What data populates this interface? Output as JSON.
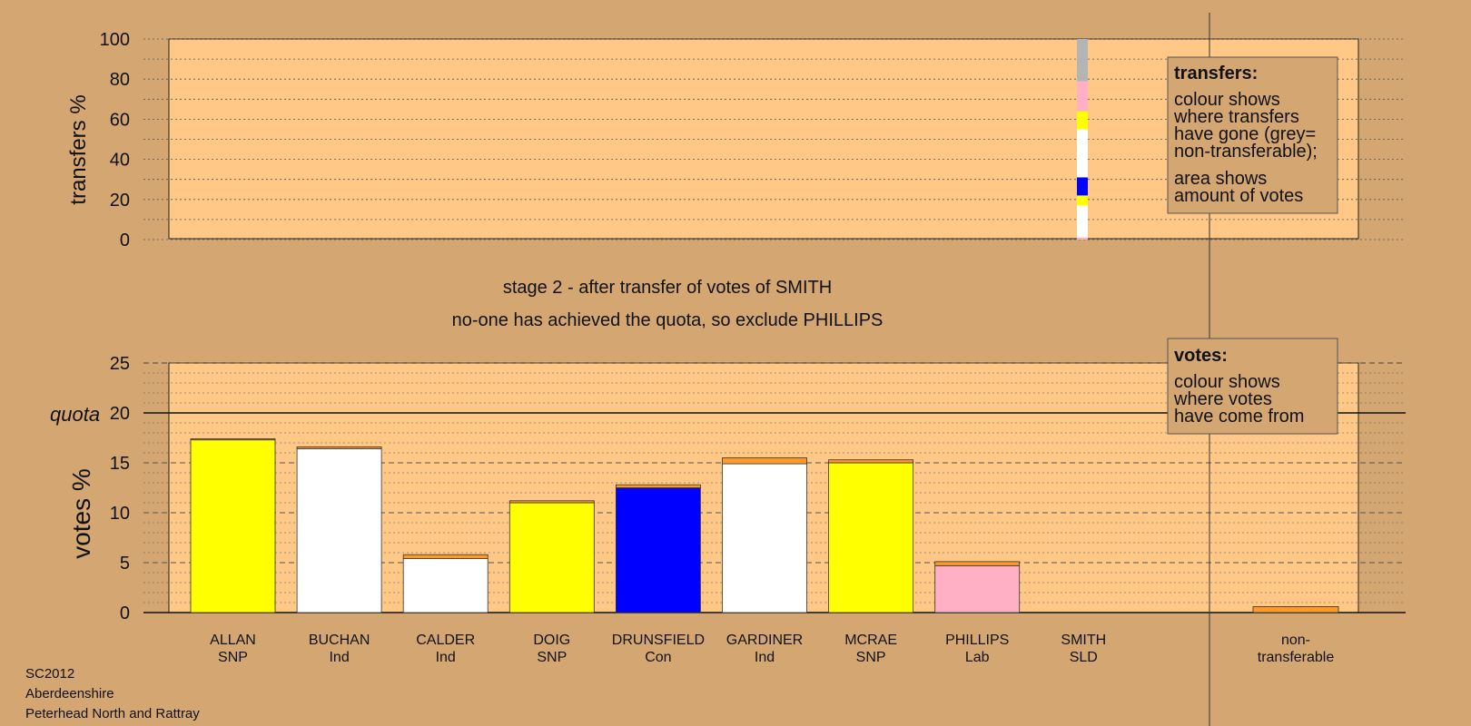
{
  "colors": {
    "background": "#d4a772",
    "plot_area": "#ffc887",
    "SNP": "#ffff00",
    "Ind": "#ffffff",
    "Con": "#0000ff",
    "Lab": "#ffb0c4",
    "transfer": "#ff9a26",
    "non_transferable": "#b4b4b4"
  },
  "stage": {
    "line1": "stage 2 - after transfer of votes of SMITH",
    "line2": "no-one has achieved the quota, so exclude PHILLIPS"
  },
  "footer": {
    "line1": "SC2012",
    "line2": "Aberdeenshire",
    "line3": "Peterhead North and Rattray"
  },
  "transfers_legend": {
    "title": "transfers:",
    "lines": [
      "colour shows",
      "where transfers",
      "have gone (grey=",
      "non-transferable);",
      "area shows",
      "amount of votes"
    ]
  },
  "votes_legend": {
    "title": "votes:",
    "lines": [
      "colour shows",
      "where votes",
      "have come from"
    ]
  },
  "chart_data": [
    {
      "type": "bar",
      "stacked": true,
      "ylabel": "transfers %",
      "ylim": [
        0,
        100
      ],
      "yticks": [
        0,
        20,
        40,
        60,
        80,
        100
      ],
      "grid": true,
      "legend_placement": "top-right",
      "transferred_from": "SMITH",
      "segments": [
        {
          "to": "PHILLIPS",
          "party": "Lab",
          "value": 1
        },
        {
          "to": "GARDINER",
          "party": "Ind",
          "value": 16
        },
        {
          "to": "MCRAE",
          "party": "SNP",
          "value": 5
        },
        {
          "to": "DRUNSFIELD",
          "party": "Con",
          "value": 9
        },
        {
          "to": "CALDER",
          "party": "Ind",
          "value": 4
        },
        {
          "to": "BUCHAN",
          "party": "Ind",
          "value": 20
        },
        {
          "to": "DOIG",
          "party": "SNP",
          "value": 9
        },
        {
          "to": "PHILLIPS",
          "party": "Lab",
          "value": 15
        },
        {
          "to": "non-transferable",
          "party": "none",
          "value": 21
        }
      ]
    },
    {
      "type": "bar",
      "stacked": true,
      "ylabel": "votes %",
      "ylim": [
        0,
        25
      ],
      "yticks": [
        0,
        5,
        10,
        15,
        20,
        25
      ],
      "quota": {
        "label": "quota",
        "value": 20
      },
      "grid": true,
      "legend_placement": "top-right",
      "categories": [
        {
          "name": "ALLAN",
          "party": "SNP"
        },
        {
          "name": "BUCHAN",
          "party": "Ind"
        },
        {
          "name": "CALDER",
          "party": "Ind"
        },
        {
          "name": "DOIG",
          "party": "SNP"
        },
        {
          "name": "DRUNSFIELD",
          "party": "Con"
        },
        {
          "name": "GARDINER",
          "party": "Ind"
        },
        {
          "name": "MCRAE",
          "party": "SNP"
        },
        {
          "name": "PHILLIPS",
          "party": "Lab"
        },
        {
          "name": "SMITH",
          "party": "SLD"
        }
      ],
      "series": [
        {
          "values": [
            17.3,
            16.4,
            5.4,
            11.0,
            12.5,
            14.9,
            15.0,
            4.7,
            0
          ]
        },
        {
          "values": [
            0.1,
            0.2,
            0.4,
            0.2,
            0.3,
            0.6,
            0.3,
            0.4,
            0
          ]
        }
      ],
      "non_transferable": {
        "label_line1": "non-",
        "label_line2": "transferable",
        "value": 0.6
      }
    }
  ]
}
